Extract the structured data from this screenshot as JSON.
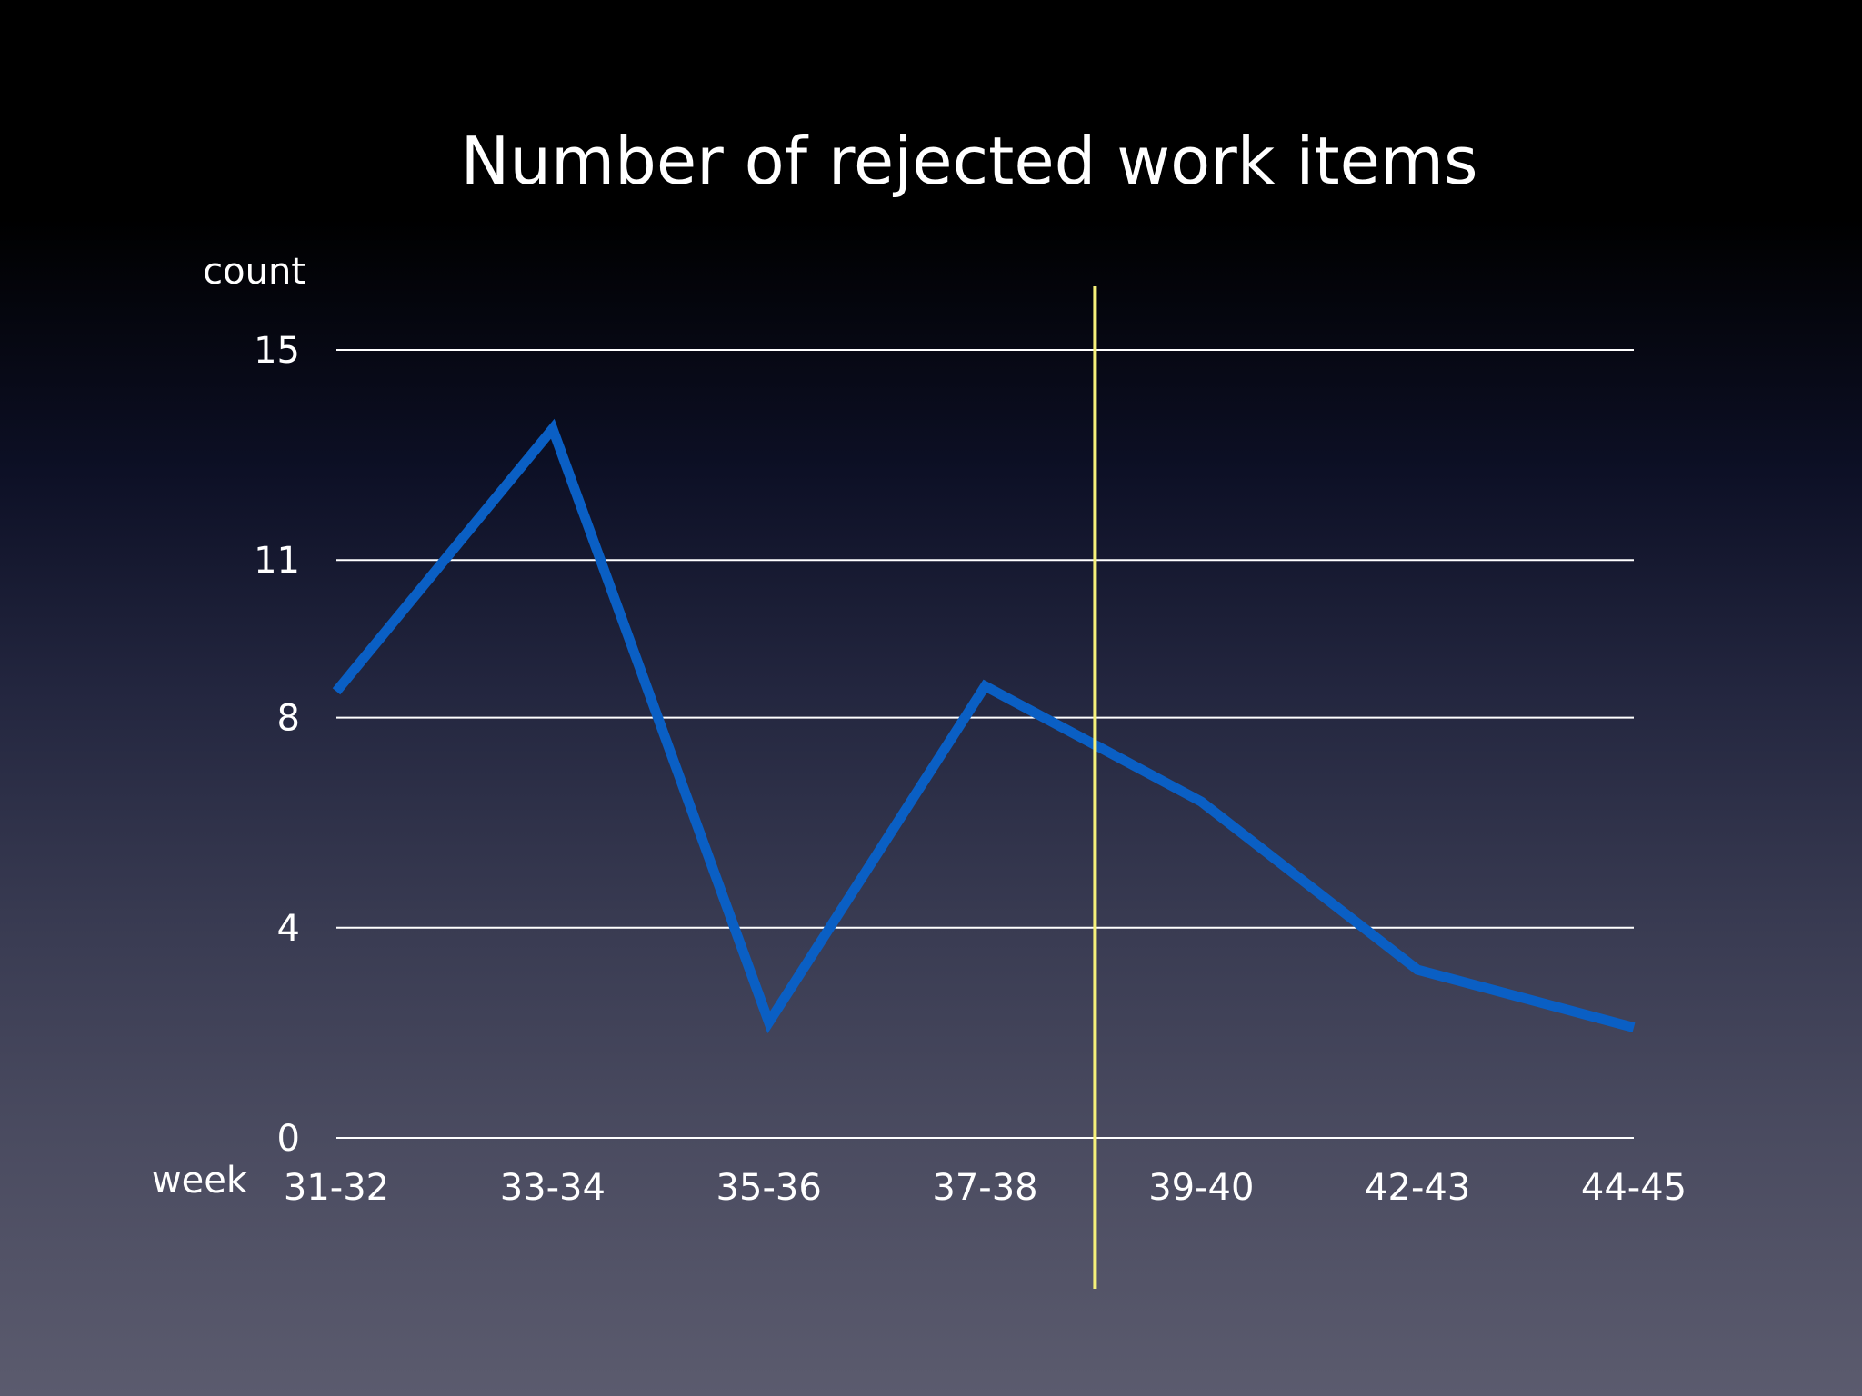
{
  "chart_data": {
    "type": "line",
    "title": "Number of rejected work items",
    "ylabel": "count",
    "xlabel": "week",
    "categories": [
      "31-32",
      "33-34",
      "35-36",
      "37-38",
      "39-40",
      "42-43",
      "44-45"
    ],
    "yticks": [
      "0",
      "4",
      "8",
      "11",
      "15"
    ],
    "ylim": [
      0,
      15
    ],
    "grid": true,
    "series": [
      {
        "values": [
          8.5,
          13.5,
          2.2,
          8.6,
          6.4,
          3.2,
          2.1
        ],
        "color": "#0a5fc4"
      }
    ],
    "reference_line": {
      "orientation": "vertical",
      "between_categories": [
        "37-38",
        "39-40"
      ],
      "color": "#f5f07a"
    }
  }
}
